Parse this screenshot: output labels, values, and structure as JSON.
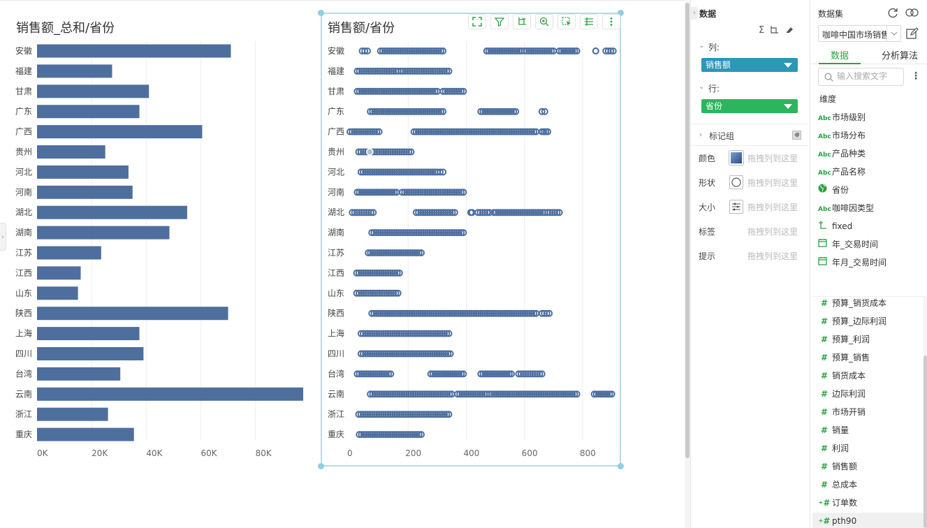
{
  "chart1": {
    "title": "销售额_总和/省份",
    "x_ticks": [
      "0K",
      "20K",
      "40K",
      "60K",
      "80K"
    ]
  },
  "chart2": {
    "title": "销售额/省份",
    "x_ticks": [
      "0",
      "200",
      "400",
      "600",
      "800"
    ],
    "toolbar_icons": [
      "fullscreen-icon",
      "filter-icon",
      "axis-swap-icon",
      "zoom-in-icon",
      "select-icon",
      "list-icon",
      "more-vertical-icon"
    ]
  },
  "chart_data": [
    {
      "type": "bar",
      "orientation": "horizontal",
      "title": "销售额_总和/省份",
      "categories": [
        "安徽",
        "福建",
        "甘肃",
        "广东",
        "广西",
        "贵州",
        "河北",
        "河南",
        "湖北",
        "湖南",
        "江苏",
        "江西",
        "山东",
        "陕西",
        "上海",
        "四川",
        "台湾",
        "云南",
        "浙江",
        "重庆"
      ],
      "values": [
        71000,
        27500,
        41000,
        37500,
        60500,
        25000,
        33500,
        35000,
        55000,
        48500,
        23500,
        16000,
        15000,
        70000,
        37500,
        39000,
        30500,
        97500,
        26000,
        35500
      ],
      "xlim": [
        0,
        98000
      ],
      "color": "#4e6f9e",
      "grid": true
    },
    {
      "type": "scatter",
      "title": "销售额/省份",
      "categories": [
        "安徽",
        "福建",
        "甘肃",
        "广东",
        "广西",
        "贵州",
        "河北",
        "河南",
        "湖北",
        "湖南",
        "江苏",
        "江西",
        "山东",
        "陕西",
        "上海",
        "四川",
        "台湾",
        "云南",
        "浙江",
        "重庆"
      ],
      "ranges": [
        [
          [
            42,
            60
          ],
          [
            105,
            320
          ],
          [
            470,
            590
          ],
          [
            600,
            700
          ],
          [
            720,
            780
          ],
          [
            845,
            845
          ],
          [
            880,
            905
          ]
        ],
        [
          [
            25,
            165
          ],
          [
            175,
            340
          ]
        ],
        [
          [
            25,
            300
          ],
          [
            320,
            390
          ]
        ],
        [
          [
            70,
            320
          ],
          [
            450,
            570
          ],
          [
            660,
            670
          ]
        ],
        [
          [
            0,
            100
          ],
          [
            220,
            640
          ],
          [
            660,
            680
          ]
        ],
        [
          [
            30,
            210
          ]
        ],
        [
          [
            38,
            300
          ],
          [
            310,
            320
          ]
        ],
        [
          [
            25,
            160
          ],
          [
            180,
            390
          ]
        ],
        [
          [
            8,
            80
          ],
          [
            228,
            360
          ],
          [
            415,
            420
          ],
          [
            440,
            480
          ],
          [
            495,
            670
          ],
          [
            680,
            720
          ]
        ],
        [
          [
            75,
            390
          ]
        ],
        [
          [
            63,
            245
          ]
        ],
        [
          [
            23,
            170
          ]
        ],
        [
          [
            23,
            165
          ]
        ],
        [
          [
            75,
            640
          ],
          [
            660,
            685
          ]
        ],
        [
          [
            38,
            340
          ]
        ],
        [
          [
            38,
            345
          ]
        ],
        [
          [
            25,
            140
          ],
          [
            278,
            390
          ],
          [
            450,
            555
          ],
          [
            580,
            660
          ]
        ],
        [
          [
            70,
            350
          ],
          [
            370,
            470
          ],
          [
            480,
            780
          ],
          [
            840,
            900
          ]
        ],
        [
          [
            30,
            340
          ]
        ],
        [
          [
            32,
            245
          ]
        ]
      ],
      "xlim": [
        0,
        920
      ],
      "color": "#4e6f9e",
      "highlight_point": {
        "category": "贵州",
        "x": 68
      }
    }
  ],
  "mid_panel": {
    "header": "数据",
    "columns_label": "列:",
    "columns_pill": "销售额",
    "rows_label": "行:",
    "rows_pill": "省份",
    "mark_group_label": "标记组",
    "marks": [
      {
        "label": "颜色",
        "icon": "color-swatch-icon",
        "drop": "拖拽列到这里"
      },
      {
        "label": "形状",
        "icon": "shape-icon",
        "drop": "拖拽列到这里"
      },
      {
        "label": "大小",
        "icon": "size-icon",
        "drop": "拖拽列到这里"
      },
      {
        "label": "标签",
        "icon": "",
        "drop": "拖拽列到这里"
      },
      {
        "label": "提示",
        "icon": "",
        "drop": "拖拽列到这里"
      }
    ],
    "colors": {
      "pill_blue": "#2c97b6",
      "pill_green": "#2cb55d"
    }
  },
  "right_panel": {
    "title": "数据集",
    "dataset": "咖啡中国市场销售",
    "tabs": [
      "数据",
      "分析算法"
    ],
    "search_placeholder": "输入搜索文字",
    "dimensions_header": "维度",
    "dimensions": [
      {
        "icon": "Abc",
        "label": "市场级别"
      },
      {
        "icon": "Abc",
        "label": "市场分布"
      },
      {
        "icon": "Abc",
        "label": "产品种类"
      },
      {
        "icon": "Abc",
        "label": "产品名称"
      },
      {
        "icon": "globe-icon",
        "label": "省份"
      },
      {
        "icon": "Abc",
        "label": "咖啡因类型"
      },
      {
        "icon": "calc-field-icon",
        "label": "fixed"
      },
      {
        "icon": "calendar-icon",
        "label": "年_交易时间"
      },
      {
        "icon": "calendar-icon",
        "label": "年月_交易时间"
      }
    ],
    "measures": [
      {
        "label": "预算_销货成本",
        "calc": false
      },
      {
        "label": "预算_边际利润",
        "calc": false
      },
      {
        "label": "预算_利润",
        "calc": false
      },
      {
        "label": "预算_销售",
        "calc": false
      },
      {
        "label": "销货成本",
        "calc": false
      },
      {
        "label": "边际利润",
        "calc": false
      },
      {
        "label": "市场开销",
        "calc": false
      },
      {
        "label": "销量",
        "calc": false
      },
      {
        "label": "利润",
        "calc": false
      },
      {
        "label": "销售额",
        "calc": false
      },
      {
        "label": "总成本",
        "calc": false
      },
      {
        "label": "订单数",
        "calc": true
      },
      {
        "label": "pth90",
        "calc": true
      }
    ],
    "accent": "#2ea043"
  }
}
